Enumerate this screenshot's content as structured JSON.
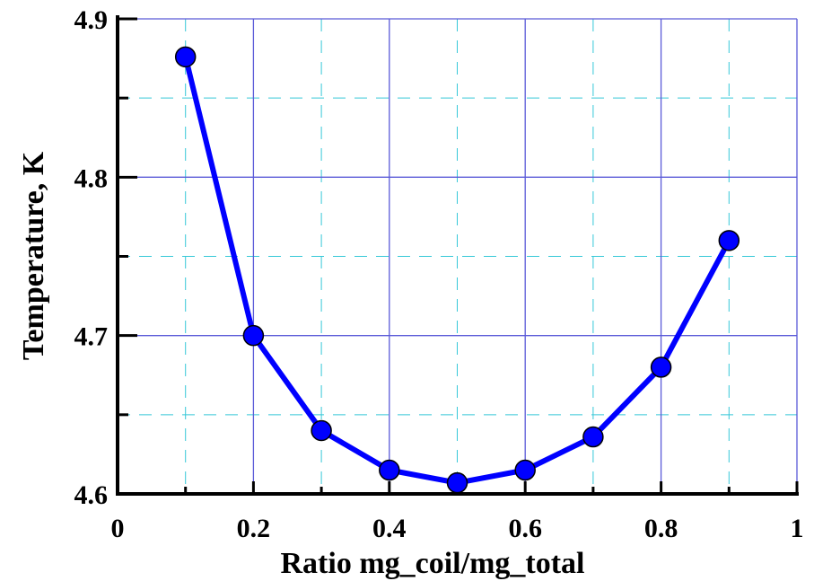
{
  "chart_data": {
    "type": "line",
    "title": "",
    "xlabel": "Ratio mg_coil/mg_total",
    "ylabel": "Temperature, K",
    "xlim": [
      0,
      1
    ],
    "ylim": [
      4.6,
      4.9
    ],
    "x_ticks": [
      0,
      0.2,
      0.4,
      0.6,
      0.8,
      1
    ],
    "x_tick_labels": [
      "0",
      "0.2",
      "0.4",
      "0.6",
      "0.8",
      "1"
    ],
    "y_ticks": [
      4.6,
      4.7,
      4.8,
      4.9
    ],
    "y_tick_labels": [
      "4.6",
      "4.7",
      "4.8",
      "4.9"
    ],
    "grid": true,
    "series": [
      {
        "x": [
          0.1,
          0.2,
          0.3,
          0.4,
          0.5,
          0.6,
          0.7,
          0.8,
          0.9
        ],
        "values": [
          4.876,
          4.7,
          4.64,
          4.615,
          4.607,
          4.615,
          4.636,
          4.68,
          4.76
        ],
        "color": "#0000ff",
        "marker": "circle"
      }
    ],
    "colors": {
      "major_grid": "#5a5ad8",
      "minor_grid": "#36c8d8",
      "axis": "#000000"
    }
  }
}
